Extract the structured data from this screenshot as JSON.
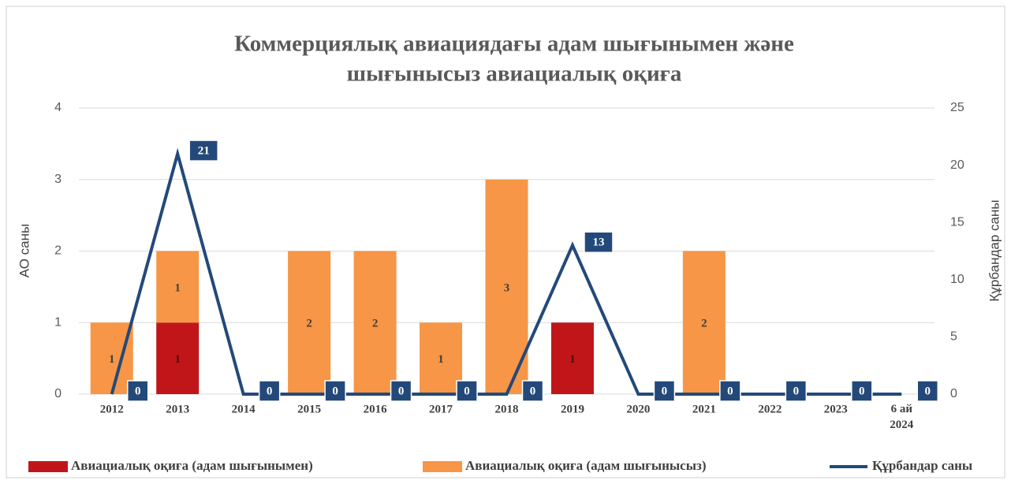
{
  "chart_data": {
    "type": "bar_line",
    "title": [
      "Коммерциялық авиациядағы адам шығынымен және",
      "шығынысыз авиациалық оқиға"
    ],
    "y_label": "АО саны",
    "y2_label": "Құрбандар саны",
    "categories": [
      "2012",
      "2013",
      "2014",
      "2015",
      "2016",
      "2017",
      "2018",
      "2019",
      "2020",
      "2021",
      "2022",
      "2023",
      "6 ай 2024"
    ],
    "series": [
      {
        "name": "Авиациалық оқиға (адам шығынымен)",
        "color": "#c0161a",
        "kind": "bar",
        "values": [
          0,
          1,
          0,
          0,
          0,
          0,
          0,
          1,
          0,
          0,
          0,
          0,
          0
        ]
      },
      {
        "name": "Авиациалық оқиға (адам шығынысыз)",
        "color": "#f79646",
        "kind": "bar",
        "values": [
          1,
          1,
          0,
          2,
          2,
          1,
          3,
          0,
          0,
          2,
          0,
          0,
          0
        ]
      },
      {
        "name": "Құрбандар саны",
        "color": "#23497a",
        "kind": "line",
        "axis": "y2",
        "values": [
          0,
          21,
          0,
          0,
          0,
          0,
          0,
          13,
          0,
          0,
          0,
          0,
          0
        ]
      }
    ],
    "ylim": [
      0,
      4
    ],
    "yticks": [
      0,
      1,
      2,
      3,
      4
    ],
    "y2lim": [
      0,
      25
    ],
    "y2ticks": [
      0,
      5,
      10,
      15,
      20,
      25
    ],
    "grid": true
  }
}
